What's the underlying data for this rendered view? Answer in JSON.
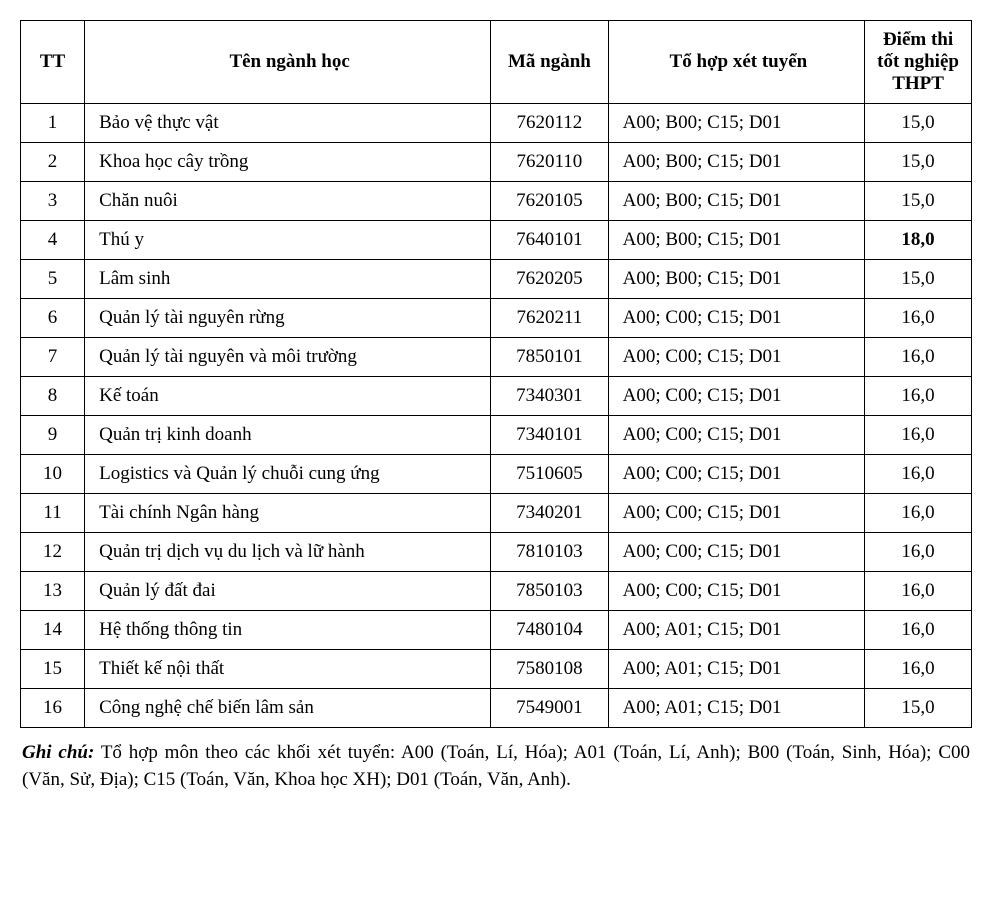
{
  "table": {
    "headers": {
      "tt": "TT",
      "name": "Tên ngành học",
      "code": "Mã ngành",
      "combo": "Tổ hợp xét tuyển",
      "score": "Điểm thi tốt nghiệp THPT"
    },
    "rows": [
      {
        "tt": "1",
        "name": "Bảo vệ thực vật",
        "code": "7620112",
        "combo": "A00; B00; C15; D01",
        "score": "15,0",
        "bold": false
      },
      {
        "tt": "2",
        "name": "Khoa học cây trồng",
        "code": "7620110",
        "combo": "A00; B00; C15; D01",
        "score": "15,0",
        "bold": false
      },
      {
        "tt": "3",
        "name": "Chăn nuôi",
        "code": "7620105",
        "combo": "A00; B00; C15; D01",
        "score": "15,0",
        "bold": false
      },
      {
        "tt": "4",
        "name": "Thú y",
        "code": "7640101",
        "combo": "A00; B00; C15; D01",
        "score": "18,0",
        "bold": true
      },
      {
        "tt": "5",
        "name": "Lâm sinh",
        "code": "7620205",
        "combo": "A00; B00; C15; D01",
        "score": "15,0",
        "bold": false
      },
      {
        "tt": "6",
        "name": "Quản lý tài nguyên rừng",
        "code": "7620211",
        "combo": "A00; C00; C15; D01",
        "score": "16,0",
        "bold": false
      },
      {
        "tt": "7",
        "name": "Quản lý tài nguyên và môi trường",
        "code": "7850101",
        "combo": "A00; C00; C15; D01",
        "score": "16,0",
        "bold": false
      },
      {
        "tt": "8",
        "name": "Kế toán",
        "code": "7340301",
        "combo": "A00; C00; C15; D01",
        "score": "16,0",
        "bold": false
      },
      {
        "tt": "9",
        "name": "Quản trị kinh doanh",
        "code": "7340101",
        "combo": "A00; C00; C15; D01",
        "score": "16,0",
        "bold": false
      },
      {
        "tt": "10",
        "name": "Logistics và Quản lý chuỗi cung ứng",
        "code": "7510605",
        "combo": "A00; C00; C15; D01",
        "score": "16,0",
        "bold": false
      },
      {
        "tt": "11",
        "name": "Tài chính Ngân hàng",
        "code": "7340201",
        "combo": "A00; C00; C15; D01",
        "score": "16,0",
        "bold": false
      },
      {
        "tt": "12",
        "name": "Quản trị dịch vụ du lịch và lữ hành",
        "code": "7810103",
        "combo": "A00; C00; C15; D01",
        "score": "16,0",
        "bold": false
      },
      {
        "tt": "13",
        "name": "Quản lý đất đai",
        "code": "7850103",
        "combo": "A00; C00; C15; D01",
        "score": "16,0",
        "bold": false
      },
      {
        "tt": "14",
        "name": "Hệ thống thông tin",
        "code": "7480104",
        "combo": "A00; A01; C15; D01",
        "score": "16,0",
        "bold": false
      },
      {
        "tt": "15",
        "name": "Thiết kế nội thất",
        "code": "7580108",
        "combo": "A00; A01; C15; D01",
        "score": "16,0",
        "bold": false
      },
      {
        "tt": "16",
        "name": "Công nghệ chế biến lâm sản",
        "code": "7549001",
        "combo": "A00; A01; C15; D01",
        "score": "15,0",
        "bold": false
      }
    ]
  },
  "note": {
    "label": "Ghi chú:",
    "text": " Tổ hợp môn theo các khối xét tuyển: A00 (Toán, Lí, Hóa); A01 (Toán, Lí, Anh); B00 (Toán, Sinh, Hóa); C00 (Văn, Sử, Địa); C15 (Toán, Văn, Khoa học XH); D01 (Toán, Văn, Anh)."
  },
  "styling": {
    "font_family": "Times New Roman",
    "border_color": "#000000",
    "background_color": "#ffffff",
    "cell_fontsize": 19,
    "note_fontsize": 19,
    "col_widths": {
      "tt": 60,
      "name": 380,
      "code": 110,
      "combo": 240,
      "score": 100
    }
  }
}
